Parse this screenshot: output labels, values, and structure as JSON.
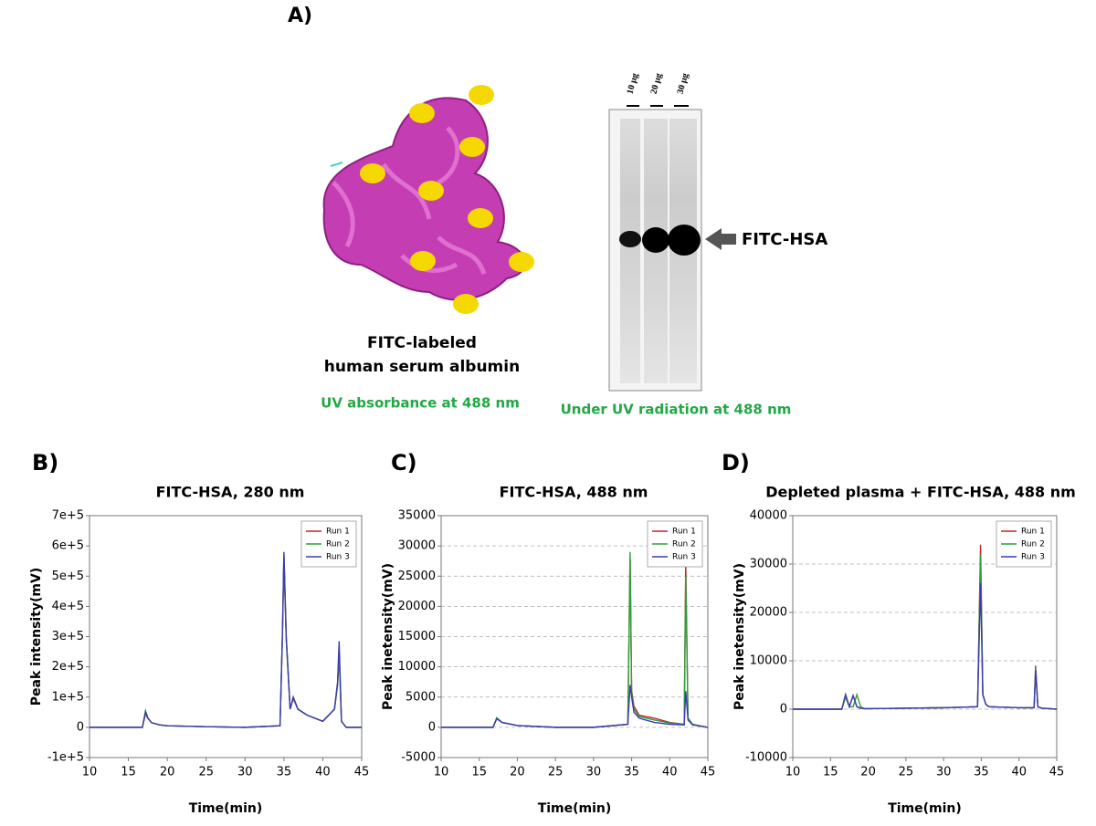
{
  "panel_a": {
    "label": "A)",
    "protein_caption_1": "FITC-labeled",
    "protein_caption_2": "human serum albumin",
    "protein_note": "UV absorbance at 488 nm",
    "gel_lanes": [
      "10 µg",
      "20 µg",
      "30 µg"
    ],
    "gel_band_label": "FITC-HSA",
    "gel_note": "Under UV radiation at 488 nm"
  },
  "chart_data": [
    {
      "type": "line",
      "panel": "B)",
      "title": "FITC-HSA, 280 nm",
      "x_label": "Time(min)",
      "y_label": "Peak intensity(mV)",
      "xlim": [
        10,
        45
      ],
      "xticks": [
        10,
        15,
        20,
        25,
        30,
        35,
        40,
        45
      ],
      "ylim": [
        -100000,
        700000
      ],
      "yticks": [
        {
          "value": -100000,
          "label": "-1e+5"
        },
        {
          "value": 0,
          "label": "0"
        },
        {
          "value": 100000,
          "label": "1e+5"
        },
        {
          "value": 200000,
          "label": "2e+5"
        },
        {
          "value": 300000,
          "label": "3e+5"
        },
        {
          "value": 400000,
          "label": "4e+5"
        },
        {
          "value": 500000,
          "label": "5e+5"
        },
        {
          "value": 600000,
          "label": "6e+5"
        },
        {
          "value": 700000,
          "label": "7e+5"
        }
      ],
      "grid": false,
      "legend": "upper right",
      "x": [
        10,
        16.8,
        17.2,
        17.5,
        18,
        19,
        20,
        25,
        30,
        34.5,
        34.8,
        35,
        35.3,
        35.8,
        36.2,
        36.8,
        38,
        40,
        41.5,
        41.9,
        42.1,
        42.4,
        43,
        45
      ],
      "series": [
        {
          "name": "Run 1",
          "color": "#c0262d",
          "values": [
            0,
            0,
            45000,
            30000,
            15000,
            8000,
            5000,
            2000,
            0,
            5000,
            290000,
            560000,
            290000,
            60000,
            95000,
            60000,
            40000,
            20000,
            60000,
            140000,
            250000,
            20000,
            0,
            0
          ]
        },
        {
          "name": "Run 2",
          "color": "#2e9e3a",
          "values": [
            0,
            0,
            55000,
            32000,
            15000,
            8000,
            5000,
            2000,
            0,
            5000,
            295000,
            570000,
            295000,
            60000,
            100000,
            60000,
            40000,
            20000,
            60000,
            140000,
            240000,
            20000,
            0,
            0
          ]
        },
        {
          "name": "Run 3",
          "color": "#3b3bb0",
          "values": [
            0,
            0,
            50000,
            30000,
            15000,
            8000,
            5000,
            2000,
            0,
            5000,
            300000,
            580000,
            300000,
            60000,
            100000,
            60000,
            40000,
            20000,
            60000,
            150000,
            285000,
            20000,
            0,
            0
          ]
        }
      ]
    },
    {
      "type": "line",
      "panel": "C)",
      "title": "FITC-HSA, 488 nm",
      "x_label": "Time(min)",
      "y_label": "Peak inetensity(mV)",
      "xlim": [
        10,
        45
      ],
      "xticks": [
        10,
        15,
        20,
        25,
        30,
        35,
        40,
        45
      ],
      "ylim": [
        -5000,
        35000
      ],
      "yticks": [
        -5000,
        0,
        5000,
        10000,
        15000,
        20000,
        25000,
        30000,
        35000
      ],
      "grid": true,
      "legend": "upper right",
      "x": [
        10,
        16.8,
        17.3,
        18,
        20,
        25,
        30,
        34.5,
        34.8,
        35,
        35.3,
        36,
        38,
        40,
        41.9,
        42.1,
        42.4,
        43,
        45
      ],
      "series": [
        {
          "name": "Run 1",
          "color": "#c0262d",
          "values": [
            0,
            0,
            1500,
            800,
            300,
            0,
            0,
            500,
            28000,
            6000,
            3500,
            2000,
            1500,
            800,
            500,
            27000,
            1500,
            500,
            0
          ]
        },
        {
          "name": "Run 2",
          "color": "#2e9e3a",
          "values": [
            0,
            0,
            1600,
            800,
            300,
            0,
            0,
            500,
            29000,
            5500,
            3000,
            1800,
            1200,
            700,
            500,
            25000,
            1500,
            500,
            0
          ]
        },
        {
          "name": "Run 3",
          "color": "#3b3bb0",
          "values": [
            0,
            0,
            1400,
            800,
            300,
            0,
            0,
            500,
            7000,
            5000,
            2500,
            1500,
            800,
            500,
            400,
            6000,
            1200,
            400,
            0
          ]
        }
      ]
    },
    {
      "type": "line",
      "panel": "D)",
      "title": "Depleted plasma + FITC-HSA, 488 nm",
      "x_label": "Time(min)",
      "y_label": "Peak inetensity(mV)",
      "xlim": [
        10,
        45
      ],
      "xticks": [
        10,
        15,
        20,
        25,
        30,
        35,
        40,
        45
      ],
      "ylim": [
        -10000,
        40000
      ],
      "yticks": [
        -10000,
        0,
        10000,
        20000,
        30000,
        40000
      ],
      "grid": true,
      "legend": "upper right",
      "x": [
        10,
        16.5,
        17,
        17.5,
        18,
        18.5,
        19,
        19.5,
        20,
        25,
        30,
        34.5,
        34.9,
        35.2,
        35.6,
        36,
        40,
        42,
        42.2,
        42.5,
        43,
        45
      ],
      "series": [
        {
          "name": "Run 1",
          "color": "#c0262d",
          "values": [
            0,
            0,
            3000,
            500,
            2800,
            500,
            200,
            100,
            100,
            200,
            300,
            500,
            34000,
            3000,
            1000,
            500,
            300,
            300,
            9000,
            500,
            200,
            0
          ]
        },
        {
          "name": "Run 2",
          "color": "#2e9e3a",
          "values": [
            0,
            0,
            2500,
            500,
            500,
            3000,
            500,
            100,
            100,
            200,
            300,
            500,
            32000,
            3000,
            1000,
            500,
            300,
            300,
            8500,
            500,
            200,
            0
          ]
        },
        {
          "name": "Run 3",
          "color": "#3b3bb0",
          "values": [
            0,
            0,
            3000,
            500,
            2800,
            500,
            200,
            100,
            100,
            200,
            300,
            500,
            26000,
            3000,
            1000,
            500,
            300,
            300,
            8000,
            500,
            200,
            0
          ]
        }
      ]
    }
  ]
}
